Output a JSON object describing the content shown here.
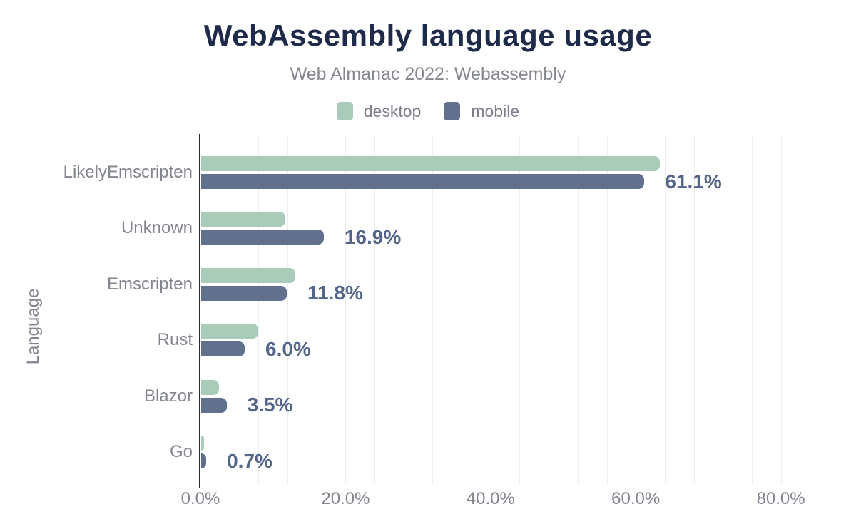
{
  "header": {
    "title": "WebAssembly language usage",
    "subtitle": "Web Almanac 2022: Webassembly"
  },
  "legend": [
    {
      "label": "desktop",
      "color": "#a9cbb9"
    },
    {
      "label": "mobile",
      "color": "#60708d"
    }
  ],
  "chart_data": {
    "type": "bar",
    "orientation": "horizontal",
    "title": "WebAssembly language usage",
    "subtitle": "Web Almanac 2022: Webassembly",
    "ylabel": "Language",
    "xlabel": "",
    "categories": [
      "LikelyEmscripten",
      "Unknown",
      "Emscripten",
      "Rust",
      "Blazor",
      "Go"
    ],
    "series": [
      {
        "name": "desktop",
        "color": "#a9cbb9",
        "values": [
          63.2,
          11.6,
          13.0,
          7.9,
          2.5,
          0.4
        ]
      },
      {
        "name": "mobile",
        "color": "#60708d",
        "values": [
          61.1,
          16.9,
          11.8,
          6.0,
          3.5,
          0.7
        ]
      }
    ],
    "data_labels": [
      "61.1%",
      "16.9%",
      "11.8%",
      "6.0%",
      "3.5%",
      "0.7%"
    ],
    "data_label_series": "mobile",
    "x_ticks": [
      {
        "value": 0,
        "label": "0.0%"
      },
      {
        "value": 20,
        "label": "20.0%"
      },
      {
        "value": 40,
        "label": "40.0%"
      },
      {
        "value": 60,
        "label": "60.0%"
      },
      {
        "value": 80,
        "label": "80.0%"
      }
    ],
    "xlim": [
      0,
      80.2
    ],
    "grid": {
      "minor_step": 4,
      "color": "#ededf1",
      "visible": true
    },
    "legend_position": "top",
    "colors": {
      "title": "#1e2a49",
      "subtitle": "#85888f",
      "axis_text": "#83868f",
      "data_label": "#54658a",
      "axis_line": "#2a2a2e"
    }
  }
}
